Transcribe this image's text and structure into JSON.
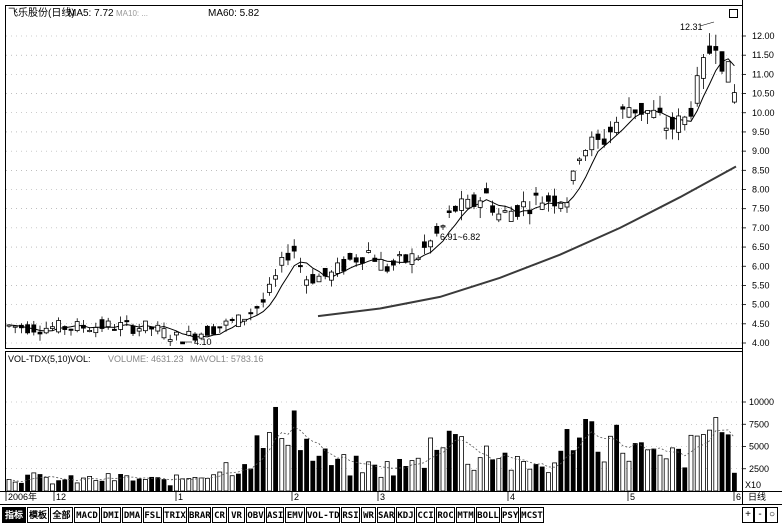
{
  "header": {
    "stock_name": "飞乐股份(日线)",
    "ma5": "MA5: 7.72",
    "ma10": "MA10: ...",
    "ma60": "MA60: 5.82"
  },
  "volume_header": {
    "indicator": "VOL-TDX(5,10)",
    "vol": "VOL: ",
    "volume": "VOLUME: 4631.23",
    "mavol": "MAVOL1: 5783.16"
  },
  "price_axis": {
    "ticks": [
      "12.00",
      "11.50",
      "11.00",
      "10.50",
      "10.00",
      "9.50",
      "9.00",
      "8.50",
      "8.00",
      "7.50",
      "7.00",
      "6.50",
      "6.00",
      "5.50",
      "5.00",
      "4.50",
      "4.00"
    ],
    "values": [
      12.0,
      11.5,
      11.0,
      10.5,
      10.0,
      9.5,
      9.0,
      8.5,
      8.0,
      7.5,
      7.0,
      6.5,
      6.0,
      5.5,
      5.0,
      4.5,
      4.0
    ]
  },
  "volume_axis": {
    "ticks": [
      "10000",
      "7500",
      "5000",
      "2500"
    ],
    "values": [
      10000,
      7500,
      5000,
      2500
    ],
    "unit": "X10"
  },
  "annotations": {
    "high": "12.31",
    "low": "4.10",
    "mid": "6.91~6.82"
  },
  "date_axis": {
    "labels": [
      "2006年",
      "12",
      "1",
      "2",
      "3",
      "4",
      "5",
      "6"
    ]
  },
  "period_label": "日线",
  "tabs": [
    "指标",
    "模板",
    "全部",
    "MACD",
    "DMI",
    "DMA",
    "FSL",
    "TRIX",
    "BRAR",
    "CR",
    "VR",
    "OBV",
    "ASI",
    "EMV",
    "VOL-TDX",
    "RSI",
    "WR",
    "SAR",
    "KDJ",
    "CCI",
    "ROC",
    "MTM",
    "BOLL",
    "PSY",
    "MCST"
  ],
  "right_buttons": [
    "+",
    "-",
    "○"
  ],
  "colors": {
    "up": "#000000",
    "down": "#000000",
    "ma60": "#3a3a3a",
    "grid": "#888888"
  }
}
